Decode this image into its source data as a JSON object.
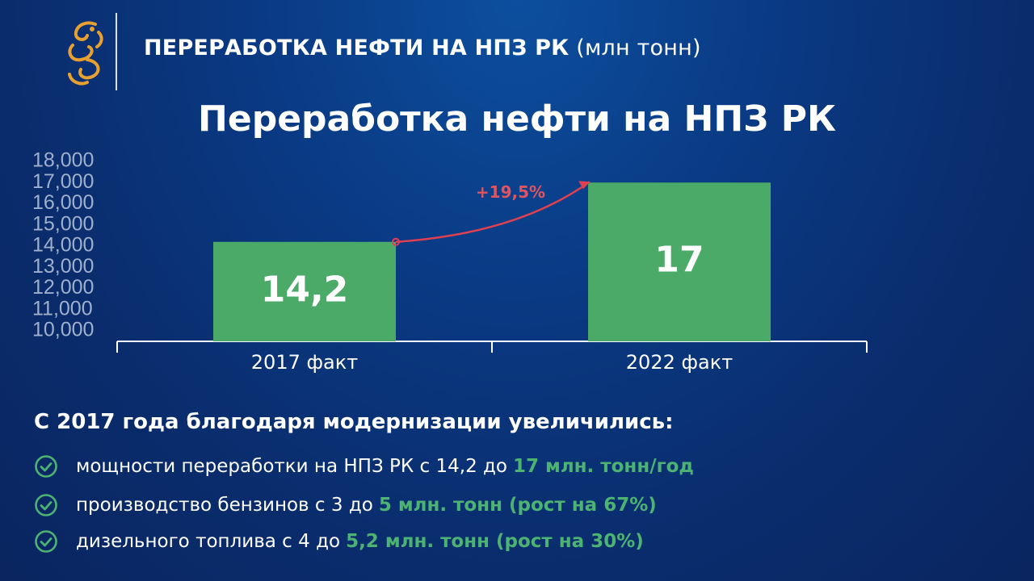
{
  "header": {
    "title_bold": "ПЕРЕРАБОТКА НЕФТИ НА НПЗ РК",
    "title_unit": "(млн тонн)"
  },
  "chart_data": {
    "type": "bar",
    "title": "Переработка нефти на НПЗ РК",
    "categories": [
      "2017 факт",
      "2022 факт"
    ],
    "values": [
      14.2,
      17
    ],
    "data_labels": [
      "14,2",
      "17"
    ],
    "y_ticks": [
      "10,000",
      "11,000",
      "12,000",
      "13,000",
      "14,000",
      "15,000",
      "16,000",
      "17,000",
      "18,000"
    ],
    "ylim": [
      10,
      18
    ],
    "annotation": "+19,5%",
    "bar_color": "#4caa68",
    "arrow_color": "#e04050",
    "grid": false
  },
  "summary": {
    "title": "С 2017 года благодаря модернизации увеличились:",
    "items": [
      {
        "text": "мощности переработки на НПЗ РК с 14,2 до",
        "highlight": "17 млн. тонн/год"
      },
      {
        "text": "производство бензинов с 3 до",
        "highlight": "5 млн. тонн (рост на 67%)"
      },
      {
        "text": "дизельного топлива с 4 до",
        "highlight": "5,2 млн. тонн (рост на 30%)"
      }
    ]
  },
  "colors": {
    "accent_green": "#4cb373",
    "logo_gold": "#e8a030"
  },
  "icons": {
    "logo": "snow-leopard-emblem-icon",
    "bullet": "check-circle-icon"
  }
}
